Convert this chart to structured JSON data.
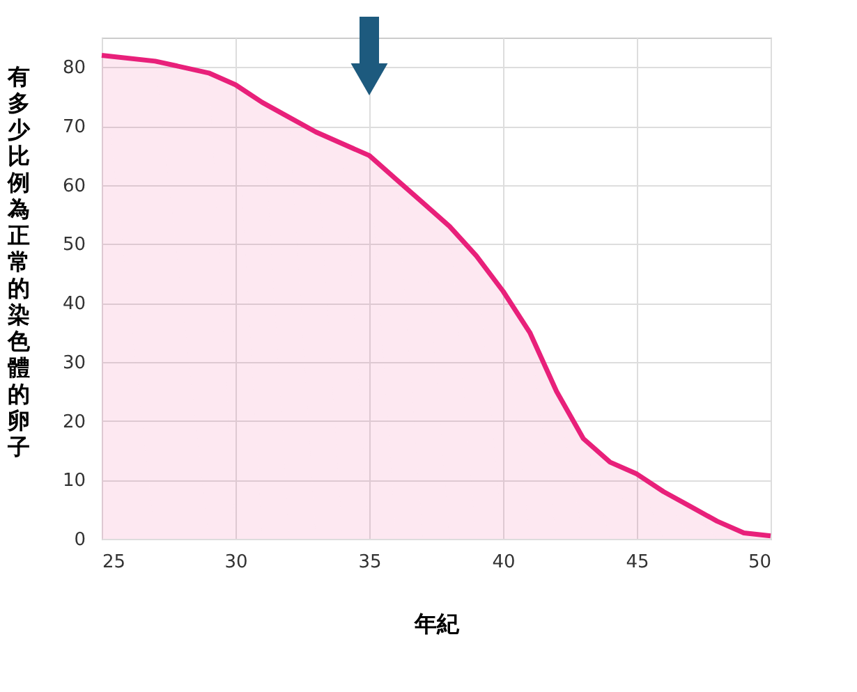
{
  "chart_data": {
    "type": "area",
    "xlabel": "年紀",
    "ylabel": "有多少比例為正常的染色體的卵子",
    "x": [
      25,
      27,
      29,
      30,
      31,
      32,
      33,
      34,
      35,
      36,
      37,
      38,
      39,
      40,
      41,
      42,
      43,
      44,
      45,
      46,
      47,
      48,
      49,
      50
    ],
    "series": [
      {
        "color": "#e8207a",
        "values": [
          82,
          81,
          79,
          77,
          74,
          71.5,
          69,
          67,
          65,
          61,
          57,
          53,
          48,
          42,
          35,
          25,
          17,
          13,
          11,
          8,
          5.5,
          3,
          1,
          0.5
        ]
      }
    ],
    "xlim": [
      25,
      50
    ],
    "xticks": [
      25,
      30,
      35,
      40,
      45,
      50
    ],
    "ylim": [
      0,
      85
    ],
    "yticks": [
      0,
      10,
      20,
      30,
      40,
      50,
      60,
      70,
      80
    ],
    "grid": true
  }
}
